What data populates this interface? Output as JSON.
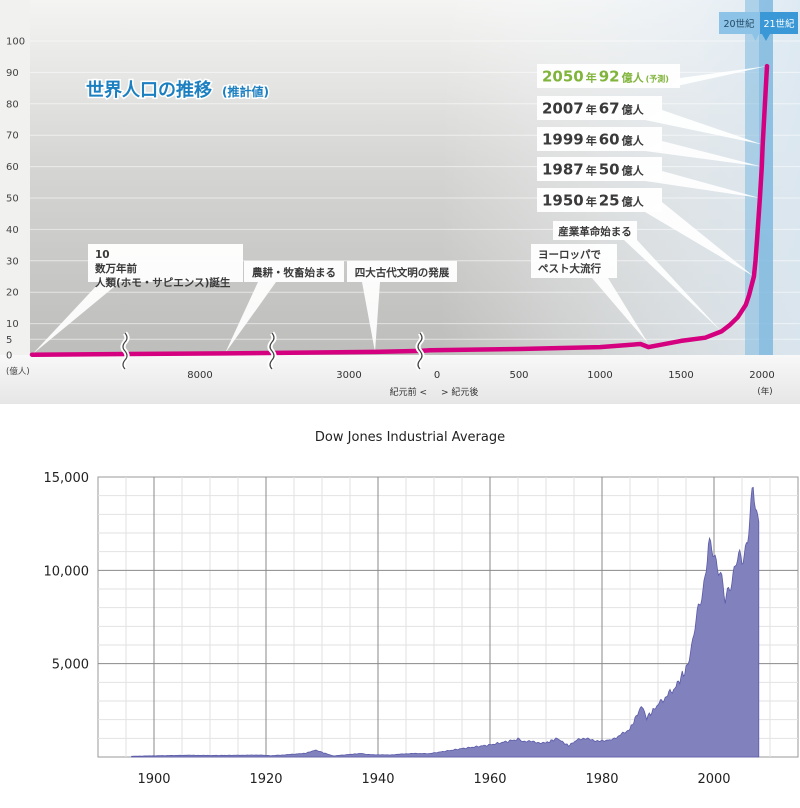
{
  "chart_data": [
    {
      "type": "line",
      "title": "世界人口の推移",
      "subtitle": "(推計値)",
      "ylabel": "(億人)",
      "xlabel": "(年)",
      "y_ticks": [
        "100",
        "90",
        "80",
        "70",
        "60",
        "50",
        "40",
        "30",
        "20",
        "10",
        "5",
        "0"
      ],
      "x_ticks": [
        "8000",
        "3000",
        "0",
        "500",
        "1000",
        "1500",
        "2000"
      ],
      "era_labels": {
        "before": "紀元前 <",
        "after": "> 紀元後"
      },
      "century_labels": [
        "20世紀",
        "21世紀"
      ],
      "ylim": [
        0,
        100
      ],
      "series": [
        {
          "x": [
            -100000,
            -10000,
            -3000,
            -500,
            1,
            500,
            1000,
            1250,
            1300,
            1500,
            1650,
            1750,
            1800,
            1850,
            1900,
            1920,
            1950,
            1960,
            1970,
            1987,
            1999,
            2007,
            2050
          ],
          "y": [
            0.1,
            0.5,
            1,
            1.3,
            1.5,
            1.9,
            2.5,
            3.5,
            2.5,
            4.5,
            5.5,
            7.5,
            9.5,
            12,
            16,
            19,
            25,
            30,
            37,
            50,
            60,
            67,
            92
          ]
        }
      ],
      "annotations": [
        {
          "text": "2050 年 92 億人 (予測)",
          "x": 2050,
          "y": 92
        },
        {
          "text": "2007 年 67 億人",
          "x": 2007,
          "y": 67
        },
        {
          "text": "1999 年 60 億人",
          "x": 1999,
          "y": 60
        },
        {
          "text": "1987 年 50 億人",
          "x": 1987,
          "y": 50
        },
        {
          "text": "1950 年 25 億人",
          "x": 1950,
          "y": 25
        },
        {
          "text": "産業革命始まる",
          "x": 1750,
          "y": 7.5
        },
        {
          "text": "ヨーロッパで ペスト大流行",
          "x": 1300,
          "y": 3.5
        },
        {
          "text": "四大古代文明の発展",
          "x": -3000,
          "y": 1
        },
        {
          "text": "農耕・牧畜始まる",
          "x": -10000,
          "y": 0.5
        },
        {
          "text": "10 数万年前 人類(ホモ・サピエンス)誕生",
          "x": -100000,
          "y": 0.1
        }
      ],
      "legend": "none",
      "grid": true,
      "colors": {
        "line": "#d4007f",
        "title": "#1b7fc0",
        "highlight": "#80b43a",
        "century_band": "#7fb9df"
      }
    },
    {
      "type": "area",
      "title": "Dow Jones Industrial Average",
      "xlabel": "",
      "ylabel": "",
      "x_ticks": [
        "1900",
        "1920",
        "1940",
        "1960",
        "1980",
        "2000"
      ],
      "y_ticks": [
        "15,000",
        "10,000",
        "5,000"
      ],
      "xlim": [
        1890,
        2015
      ],
      "ylim": [
        0,
        15000
      ],
      "x": [
        1896,
        1900,
        1906,
        1910,
        1915,
        1919,
        1921,
        1925,
        1927,
        1929,
        1930,
        1932,
        1935,
        1937,
        1938,
        1942,
        1946,
        1949,
        1950,
        1955,
        1960,
        1965,
        1966,
        1970,
        1972,
        1974,
        1976,
        1980,
        1982,
        1985,
        1987,
        1988,
        1990,
        1993,
        1995,
        1996,
        1997,
        1998,
        1999,
        2000,
        2001,
        2002,
        2003,
        2004,
        2005,
        2006,
        2007,
        2008
      ],
      "y": [
        40,
        65,
        95,
        85,
        95,
        105,
        70,
        150,
        200,
        380,
        250,
        60,
        140,
        190,
        130,
        110,
        190,
        180,
        220,
        450,
        650,
        950,
        850,
        750,
        1000,
        600,
        1000,
        850,
        950,
        1500,
        2700,
        2100,
        2800,
        3700,
        4700,
        6000,
        7500,
        9000,
        11200,
        10800,
        10200,
        8200,
        9500,
        10400,
        10600,
        11800,
        14100,
        12600
      ],
      "grid": true,
      "legend": "none",
      "colors": {
        "fill": "#8181be",
        "stroke": "#5b5ba8"
      }
    }
  ]
}
